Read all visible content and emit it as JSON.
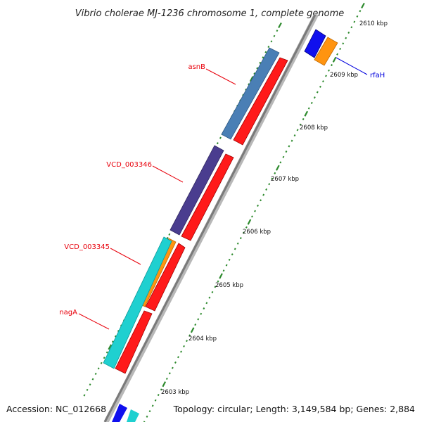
{
  "map": {
    "title": "Vibrio cholerae MJ-1236 chromosome 1, complete genome",
    "accession_text": "Accession: NC_012668",
    "summary_text": "Topology: circular; Length: 3,149,584 bp; Genes: 2,884",
    "tick_labels": [
      "2610 kbp",
      "2609 kbp",
      "2608 kbp",
      "2607 kbp",
      "2606 kbp",
      "2605 kbp",
      "2604 kbp",
      "2603 kbp"
    ],
    "gene_labels": [
      {
        "text": "asnB",
        "color": "#e8000b"
      },
      {
        "text": "VCD_003346",
        "color": "#e8000b"
      },
      {
        "text": "VCD_003345",
        "color": "#e8000b"
      },
      {
        "text": "nagA",
        "color": "#e8000b"
      },
      {
        "text": "rfaH",
        "color": "#0000dd"
      }
    ],
    "feature_colors": {
      "cds_red": "#ff1a1a",
      "steel_blue": "#4a7fb5",
      "purple": "#4a3d8f",
      "cyan": "#1fd0d0",
      "orange": "#ff9410",
      "blue": "#1010ee",
      "tick_green": "#2d8a2d",
      "backbone": "#888888"
    }
  }
}
